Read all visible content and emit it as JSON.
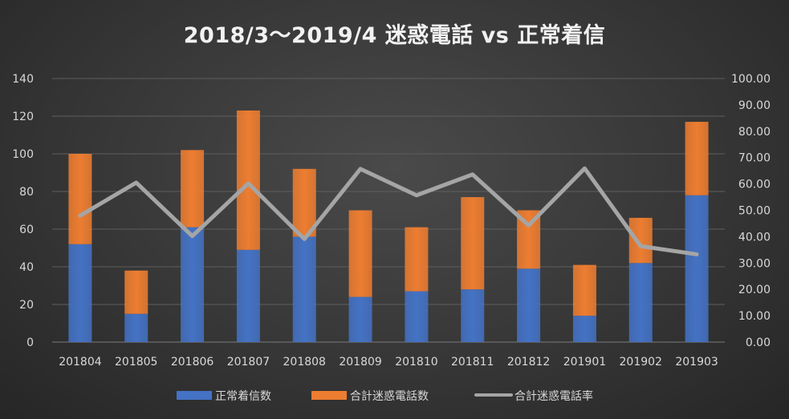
{
  "chart_data": {
    "type": "bar",
    "title": "2018/3～2019/4 迷惑電話 vs 正常着信",
    "categories": [
      "201804",
      "201805",
      "201806",
      "201807",
      "201808",
      "201809",
      "201810",
      "201811",
      "201812",
      "201901",
      "201902",
      "201903"
    ],
    "series": [
      {
        "name": "正常着信数",
        "type": "bar",
        "stack": "main",
        "axis": "left",
        "color": "#4472c4",
        "values": [
          52,
          15,
          61,
          49,
          56,
          24,
          27,
          28,
          39,
          14,
          42,
          78
        ]
      },
      {
        "name": "合計迷惑電話数",
        "type": "bar",
        "stack": "main",
        "axis": "left",
        "color": "#ed7d31",
        "values": [
          48,
          23,
          41,
          74,
          36,
          46,
          34,
          49,
          31,
          27,
          24,
          39
        ]
      },
      {
        "name": "合計迷惑電話率",
        "type": "line",
        "axis": "right",
        "color": "#a5a5a5",
        "values": [
          48.0,
          60.5,
          40.2,
          60.2,
          39.1,
          65.7,
          55.7,
          63.6,
          44.3,
          65.9,
          36.4,
          33.3
        ]
      }
    ],
    "y_left": {
      "min": 0,
      "max": 140,
      "step": 20,
      "tick_labels": [
        "0",
        "20",
        "40",
        "60",
        "80",
        "100",
        "120",
        "140"
      ]
    },
    "y_right": {
      "min": 0,
      "max": 100,
      "step": 10,
      "tick_labels": [
        "0.00",
        "10.00",
        "20.00",
        "30.00",
        "40.00",
        "50.00",
        "60.00",
        "70.00",
        "80.00",
        "90.00",
        "100.00"
      ]
    },
    "grid": true,
    "legend_position": "bottom"
  }
}
